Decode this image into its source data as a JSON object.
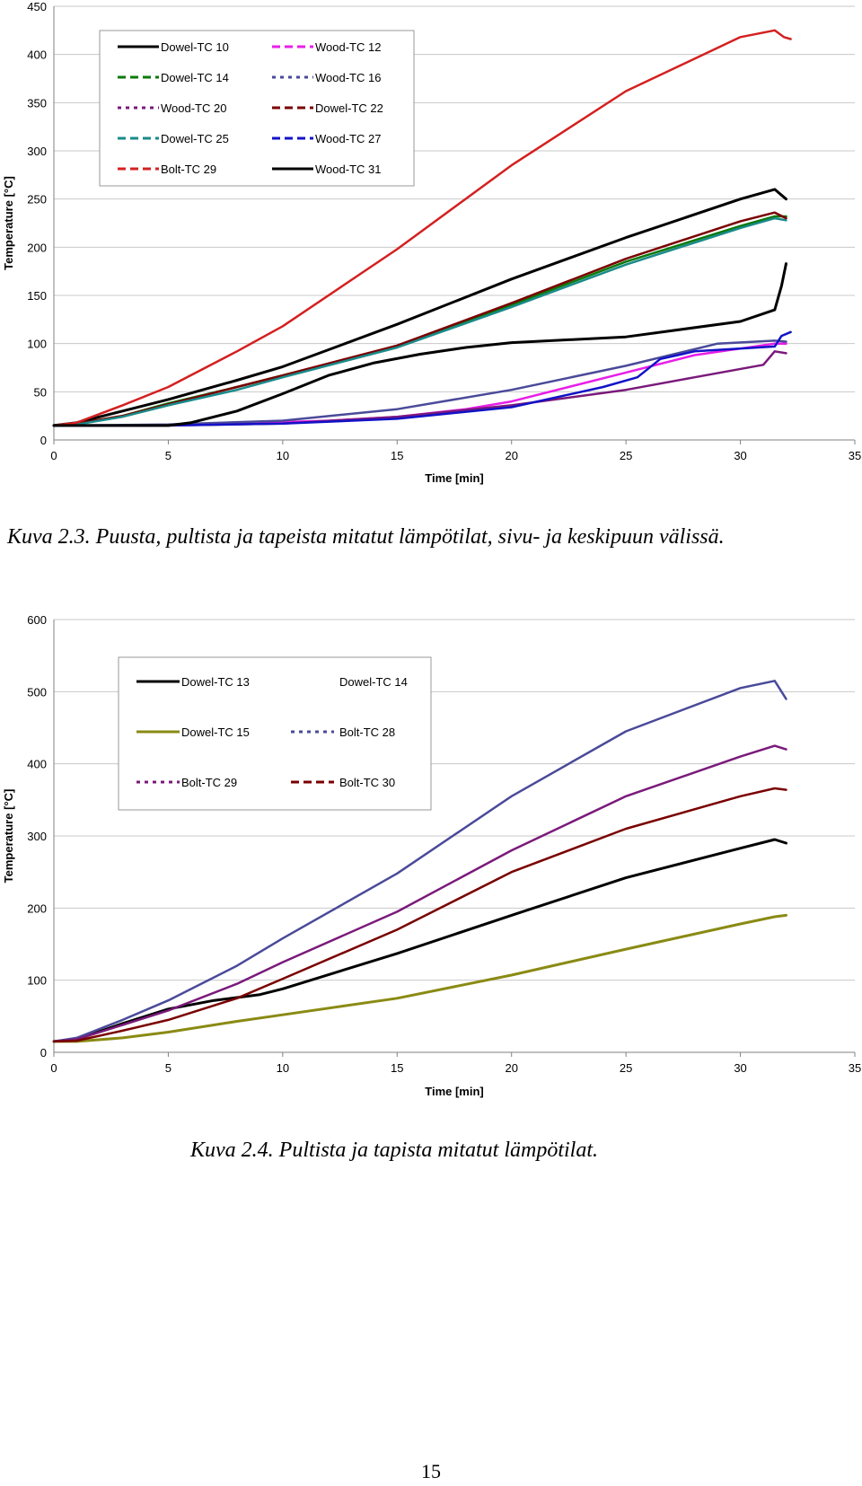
{
  "chart_data": [
    {
      "type": "line",
      "title": "",
      "xlabel": "Time [min]",
      "ylabel": "Temperature [°C]",
      "xlim": [
        0,
        35
      ],
      "ylim": [
        0,
        450
      ],
      "xticks": [
        0,
        5,
        10,
        15,
        20,
        25,
        30,
        35
      ],
      "yticks": [
        0,
        50,
        100,
        150,
        200,
        250,
        300,
        350,
        400,
        450
      ],
      "grid": "horizontal",
      "legend_position": "top-left",
      "series": [
        {
          "name": "Dowel-TC 10",
          "color": "#000000",
          "style": "solid",
          "x": [
            0,
            1,
            3,
            5,
            8,
            10,
            15,
            20,
            25,
            30,
            31.5,
            32
          ],
          "y": [
            15,
            18,
            30,
            42,
            62,
            76,
            120,
            167,
            210,
            250,
            260,
            250
          ]
        },
        {
          "name": "Wood-TC 12",
          "color": "#e81ee8",
          "style": "dash",
          "x": [
            0,
            5,
            8,
            12,
            15,
            18,
            20,
            25,
            28,
            31.5,
            32
          ],
          "y": [
            15,
            15,
            17,
            20,
            24,
            32,
            40,
            70,
            88,
            100,
            100
          ]
        },
        {
          "name": "Dowel-TC 14",
          "color": "#0a7a0a",
          "style": "dash",
          "x": [
            0,
            1,
            3,
            5,
            8,
            10,
            15,
            20,
            25,
            30,
            31.5,
            32
          ],
          "y": [
            15,
            17,
            25,
            38,
            55,
            67,
            97,
            140,
            185,
            222,
            232,
            232
          ]
        },
        {
          "name": "Wood-TC 16",
          "color": "#4a4a9a",
          "style": "dot",
          "x": [
            0,
            5,
            10,
            15,
            20,
            25,
            29,
            31.5,
            32
          ],
          "y": [
            15,
            16,
            20,
            32,
            52,
            77,
            100,
            103,
            102
          ]
        },
        {
          "name": "Wood-TC 20",
          "color": "#7a1a7a",
          "style": "dot",
          "x": [
            0,
            5,
            10,
            15,
            20,
            25,
            28,
            31,
            31.5,
            32
          ],
          "y": [
            15,
            15,
            17,
            24,
            36,
            52,
            65,
            78,
            92,
            90
          ]
        },
        {
          "name": "Dowel-TC 22",
          "color": "#7a0000",
          "style": "dash",
          "x": [
            0,
            1,
            3,
            5,
            8,
            10,
            15,
            20,
            25,
            30,
            31.5,
            32
          ],
          "y": [
            15,
            17,
            25,
            37,
            55,
            67,
            98,
            142,
            188,
            227,
            236,
            230
          ]
        },
        {
          "name": "Dowel-TC 25",
          "color": "#1a8a8a",
          "style": "dash",
          "x": [
            0,
            1,
            3,
            5,
            8,
            10,
            15,
            20,
            25,
            30,
            31.5,
            32
          ],
          "y": [
            15,
            16,
            24,
            36,
            52,
            65,
            96,
            138,
            182,
            220,
            230,
            228
          ]
        },
        {
          "name": "Wood-TC 27",
          "color": "#1212c8",
          "style": "dash",
          "x": [
            0,
            5,
            10,
            15,
            20,
            24,
            25.5,
            26.5,
            28,
            31.5,
            31.8,
            32.2
          ],
          "y": [
            15,
            15,
            17,
            22,
            34,
            55,
            65,
            84,
            92,
            97,
            108,
            112
          ]
        },
        {
          "name": "Bolt-TC 29",
          "color": "#d42020",
          "style": "dash",
          "x": [
            0,
            1,
            3,
            5,
            8,
            10,
            15,
            20,
            25,
            30,
            31.5,
            31.9,
            32.2
          ],
          "y": [
            15,
            18,
            36,
            55,
            92,
            118,
            198,
            285,
            362,
            418,
            425,
            418,
            416
          ]
        },
        {
          "name": "Wood-TC 31",
          "color": "#000000",
          "style": "solid",
          "x": [
            0,
            5,
            6,
            8,
            10,
            12,
            14,
            16,
            18,
            20,
            25,
            30,
            31.5,
            31.8,
            32
          ],
          "y": [
            15,
            15,
            18,
            30,
            48,
            67,
            80,
            89,
            96,
            101,
            107,
            123,
            135,
            160,
            183
          ]
        }
      ]
    },
    {
      "type": "line",
      "title": "",
      "xlabel": "Time [min]",
      "ylabel": "Temperature [°C]",
      "xlim": [
        0,
        35
      ],
      "ylim": [
        0,
        600
      ],
      "xticks": [
        0,
        5,
        10,
        15,
        20,
        25,
        30,
        35
      ],
      "yticks": [
        0,
        100,
        200,
        300,
        400,
        500,
        600
      ],
      "grid": "horizontal",
      "legend_position": "top-left",
      "series": [
        {
          "name": "Dowel-TC 13",
          "color": "#000000",
          "style": "solid",
          "x": [
            0,
            1,
            3,
            5,
            7,
            9,
            10,
            15,
            20,
            25,
            30,
            31.5,
            32
          ],
          "y": [
            15,
            18,
            40,
            60,
            72,
            80,
            88,
            137,
            190,
            242,
            283,
            295,
            290
          ]
        },
        {
          "name": "Dowel-TC 14",
          "color": "#ffffff",
          "style": "solid",
          "x": [],
          "y": []
        },
        {
          "name": "Dowel-TC 15",
          "color": "#8a8a14",
          "style": "solid",
          "x": [
            0,
            1,
            3,
            5,
            8,
            10,
            15,
            20,
            25,
            30,
            31.5,
            32
          ],
          "y": [
            15,
            15,
            20,
            28,
            43,
            52,
            75,
            107,
            143,
            178,
            188,
            190
          ]
        },
        {
          "name": "Bolt-TC 28",
          "color": "#4a4a9a",
          "style": "dot",
          "x": [
            0,
            1,
            3,
            5,
            8,
            10,
            15,
            20,
            25,
            30,
            31.5,
            32
          ],
          "y": [
            15,
            20,
            45,
            72,
            120,
            158,
            248,
            355,
            445,
            505,
            515,
            490
          ]
        },
        {
          "name": "Bolt-TC 29",
          "color": "#7a1a7a",
          "style": "dot",
          "x": [
            0,
            1,
            3,
            5,
            8,
            10,
            15,
            20,
            25,
            30,
            31.5,
            32
          ],
          "y": [
            15,
            18,
            38,
            58,
            95,
            125,
            195,
            280,
            355,
            410,
            425,
            420
          ]
        },
        {
          "name": "Bolt-TC 30",
          "color": "#7a0000",
          "style": "dash",
          "x": [
            0,
            1,
            3,
            5,
            8,
            10,
            15,
            20,
            25,
            30,
            31.5,
            32
          ],
          "y": [
            15,
            16,
            30,
            45,
            75,
            102,
            170,
            250,
            310,
            355,
            366,
            364
          ]
        }
      ]
    }
  ],
  "captions": {
    "figure1": "Kuva 2.3. Puusta, pultista ja tapeista mitatut lämpötilat, sivu- ja keskipuun välissä.",
    "figure2": "Kuva 2.4. Pultista ja tapista mitatut lämpötilat."
  },
  "page_number": "15"
}
